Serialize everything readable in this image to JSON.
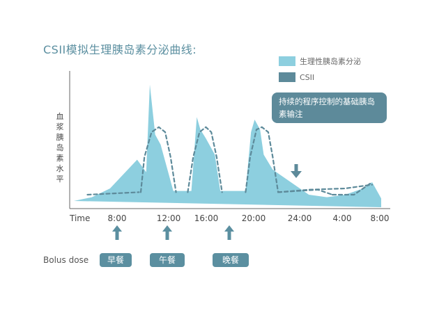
{
  "title": "CSII模拟生理胰岛素分泌曲线:",
  "legend": [
    {
      "label": "生理性胰岛素分泌",
      "color": "#8dcfdf"
    },
    {
      "label": "CSII",
      "color": "#5d8a9a"
    }
  ],
  "ylabel": "血浆胰岛素水平",
  "annotation": "持续的程序控制的基础胰岛素输注",
  "bolus": {
    "label": "Bolus dose",
    "meals": [
      "早餐",
      "午餐",
      "晚餐"
    ]
  },
  "chart_data": {
    "type": "area",
    "x_time_label": "Time",
    "x_ticks": [
      "8:00",
      "12:00",
      "16:00",
      "20:00",
      "24:00",
      "4:00",
      "8:00"
    ],
    "series": [
      {
        "name": "生理性胰岛素分泌",
        "color": "#8dcfdf",
        "style": "filled-area",
        "points": [
          [
            0,
            5
          ],
          [
            2,
            8
          ],
          [
            4,
            15
          ],
          [
            7,
            38
          ],
          [
            8,
            28
          ],
          [
            8.4,
            98
          ],
          [
            9,
            58
          ],
          [
            9.6,
            50
          ],
          [
            11,
            13
          ],
          [
            11.6,
            13
          ],
          [
            13,
            13
          ],
          [
            13.6,
            72
          ],
          [
            14,
            62
          ],
          [
            14.6,
            55
          ],
          [
            15.6,
            42
          ],
          [
            16.2,
            13
          ],
          [
            18,
            13
          ],
          [
            19,
            13
          ],
          [
            19.6,
            60
          ],
          [
            20,
            70
          ],
          [
            20.6,
            62
          ],
          [
            21,
            42
          ],
          [
            22,
            30
          ],
          [
            24,
            20
          ],
          [
            25,
            15
          ],
          [
            26,
            10
          ],
          [
            28,
            8
          ],
          [
            30,
            10
          ],
          [
            32,
            15
          ],
          [
            33,
            20
          ],
          [
            34,
            7
          ],
          [
            34,
            0
          ]
        ]
      },
      {
        "name": "CSII",
        "color": "#5d8a9a",
        "style": "dashed",
        "segments": [
          [
            [
              1.5,
              10
            ],
            [
              7.2,
              12
            ]
          ],
          [
            [
              7.4,
              12
            ],
            [
              7.8,
              40
            ],
            [
              8.6,
              60
            ],
            [
              9.4,
              64
            ],
            [
              10.1,
              60
            ],
            [
              10.7,
              40
            ],
            [
              11.3,
              12
            ]
          ],
          [
            [
              12.6,
              12
            ],
            [
              13.2,
              40
            ],
            [
              13.9,
              60
            ],
            [
              14.6,
              64
            ],
            [
              15.2,
              60
            ],
            [
              15.8,
              40
            ],
            [
              16.4,
              12
            ]
          ],
          [
            [
              19,
              12
            ],
            [
              19.5,
              40
            ],
            [
              20.2,
              62
            ],
            [
              20.8,
              64
            ],
            [
              21.5,
              60
            ],
            [
              22,
              40
            ],
            [
              22.6,
              12
            ]
          ],
          [
            [
              22.6,
              12
            ],
            [
              27,
              14
            ],
            [
              28.6,
              10
            ]
          ],
          [
            [
              28.6,
              10
            ],
            [
              31,
              10
            ],
            [
              33,
              20
            ]
          ],
          [
            [
              22.6,
              12
            ],
            [
              26,
              14
            ],
            [
              30,
              15
            ],
            [
              33,
              18
            ]
          ]
        ]
      }
    ],
    "y_range": [
      0,
      100
    ],
    "x_range": [
      0,
      34
    ],
    "grid": false,
    "legend_position": "top-right"
  }
}
